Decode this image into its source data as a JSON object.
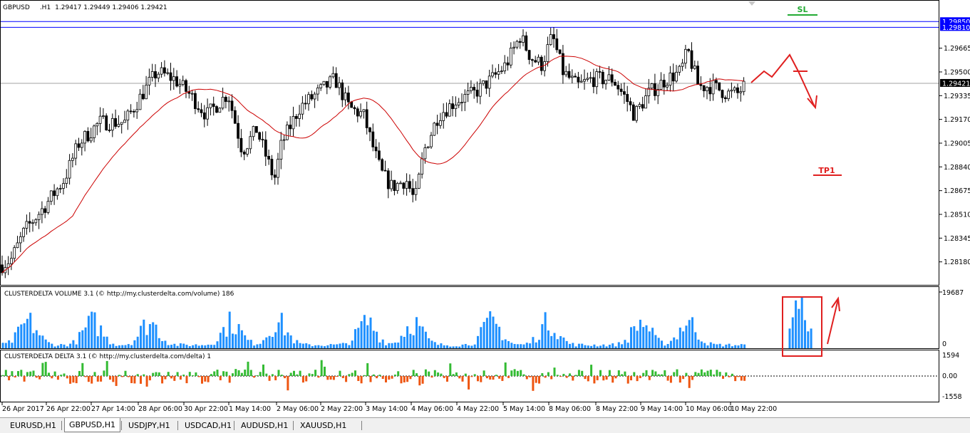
{
  "symbol_header": {
    "symbol": "GBPUSD",
    "timeframe": ".H1",
    "ohlc": "1.29417 1.29449 1.29406 1.29421"
  },
  "chart_data": [
    {
      "type": "candlestick",
      "title": "GBPUSD,H1",
      "ylim": [
        1.2803,
        1.2998
      ],
      "y_ticks": [
        "1.29850",
        "1.29810",
        "1.29665",
        "1.29500",
        "1.29421",
        "1.29335",
        "1.29170",
        "1.29005",
        "1.28840",
        "1.28675",
        "1.28510",
        "1.28345",
        "1.28180"
      ],
      "price_levels": [
        {
          "price": 1.2985,
          "label": "1.29850",
          "color": "#0000ff"
        },
        {
          "price": 1.2981,
          "label": "1.29810",
          "color": "#0000ff"
        },
        {
          "price": 1.29421,
          "label": "1.29421",
          "color": "#000000"
        }
      ],
      "x_ticks": [
        "26 Apr 2017",
        "26 Apr 22:00",
        "27 Apr 14:00",
        "28 Apr 06:00",
        "30 Apr 22:00",
        "1 May 14:00",
        "2 May 06:00",
        "2 May 22:00",
        "3 May 14:00",
        "4 May 06:00",
        "4 May 22:00",
        "5 May 14:00",
        "8 May 06:00",
        "8 May 22:00",
        "9 May 14:00",
        "10 May 06:00",
        "10 May 22:00"
      ],
      "moving_average_color": "#cc0000",
      "annotations": [
        {
          "text": "SL",
          "price": 1.299,
          "color": "#22aa33"
        },
        {
          "text": "TP1",
          "price": 1.2878,
          "color": "#e02020"
        }
      ]
    },
    {
      "type": "bar",
      "title": "CLUSTERDELTA VOLUME 3.1 (© http://my.clusterdelta.com/volume) 186",
      "ylim": [
        0,
        19687
      ],
      "y_ticks": [
        "19687",
        "0"
      ],
      "color": "#1e90ff"
    },
    {
      "type": "bar",
      "title": "CLUSTERDELTA DELTA 3.1 (© http://my.clusterdelta.com/delta) 1",
      "ylim": [
        -1558,
        1594
      ],
      "y_ticks": [
        "1594",
        "0.00",
        "-1558"
      ],
      "positive_color": "#33bb33",
      "negative_color": "#ee5511"
    }
  ],
  "tabs": [
    {
      "label": "EURUSD,H1",
      "active": false
    },
    {
      "label": "GBPUSD,H1",
      "active": true
    },
    {
      "label": "USDJPY,H1",
      "active": false
    },
    {
      "label": "USDCAD,H1",
      "active": false
    },
    {
      "label": "AUDUSD,H1",
      "active": false
    },
    {
      "label": "XAUUSD,H1",
      "active": false
    }
  ]
}
